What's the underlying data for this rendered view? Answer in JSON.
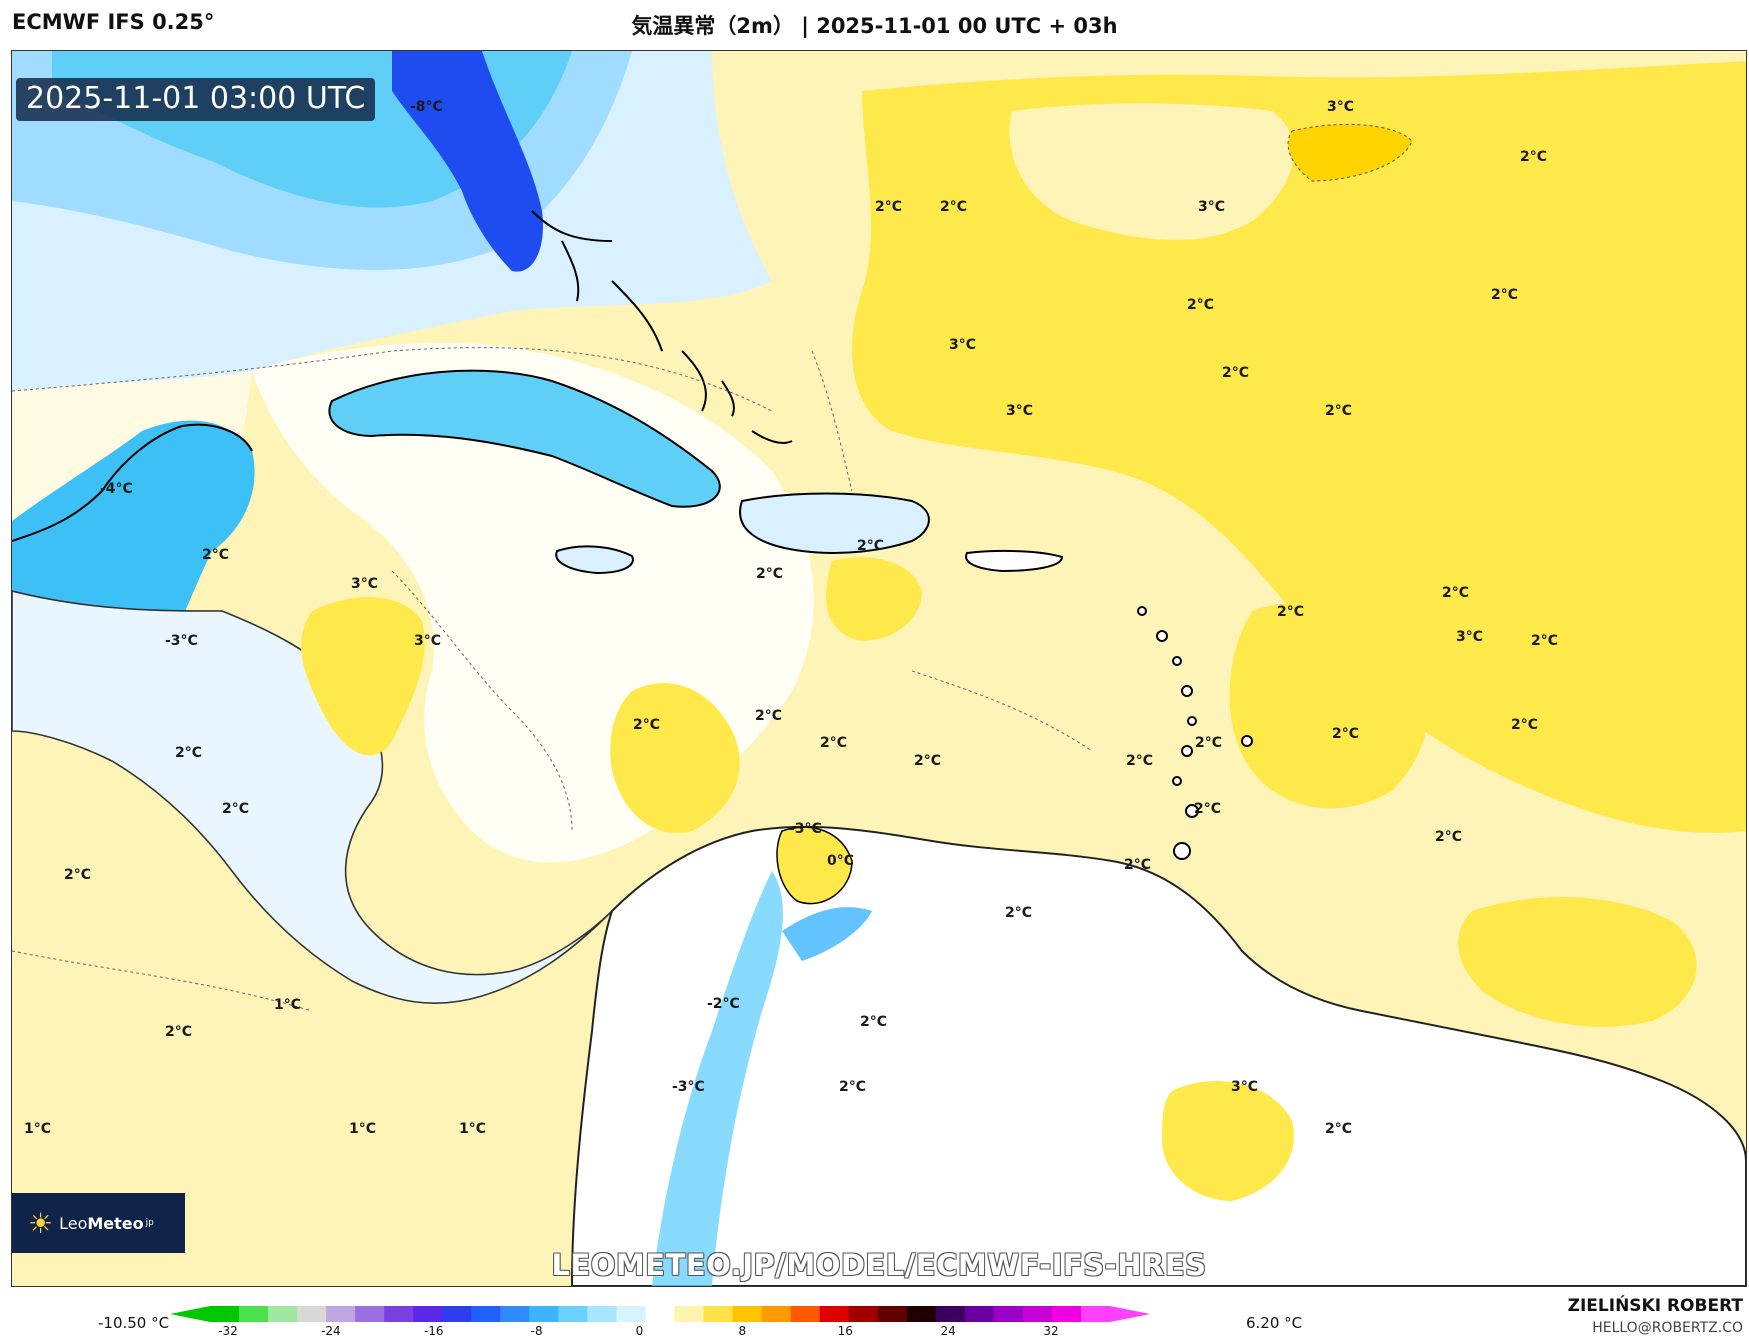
{
  "header": {
    "model": "ECMWF IFS 0.25°",
    "title": "気温異常（2m） | 2025-11-01 00 UTC + 03h"
  },
  "map": {
    "timestamp": "2025-11-01 03:00 UTC",
    "url": "LEOMETEO.JP/MODEL/ECMWF-IFS-HRES",
    "logo": {
      "prefix": "Leo",
      "bold": "Meteo",
      "suffix": "jp"
    },
    "colors": {
      "ocean_warm": "#fff4b8",
      "warm_2": "#ffe94a",
      "cool_1": "#d9f0ff",
      "cool_2": "#9fdcff",
      "cold_4": "#3cc0f5",
      "cold_8": "#1f4cf0",
      "coast": "#000000"
    },
    "labels": [
      {
        "text": "-8°C"
      },
      {
        "text": "3°C"
      },
      {
        "text": "2°C"
      },
      {
        "text": "2°C"
      },
      {
        "text": "2°C"
      },
      {
        "text": "3°C"
      },
      {
        "text": "2°C"
      },
      {
        "text": "2°C"
      },
      {
        "text": "3°C"
      },
      {
        "text": "2°C"
      },
      {
        "text": "3°C"
      },
      {
        "text": "2°C"
      },
      {
        "text": "-4°C"
      },
      {
        "text": "2°C"
      },
      {
        "text": "3°C"
      },
      {
        "text": "2°C"
      },
      {
        "text": "2°C"
      },
      {
        "text": "2°C"
      },
      {
        "text": "-3°C"
      },
      {
        "text": "3°C"
      },
      {
        "text": "2°C"
      },
      {
        "text": "2°C"
      },
      {
        "text": "3°C"
      },
      {
        "text": "2°C"
      },
      {
        "text": "2°C"
      },
      {
        "text": "2°C"
      },
      {
        "text": "2°C"
      },
      {
        "text": "2°C"
      },
      {
        "text": "2°C"
      },
      {
        "text": "2°C"
      },
      {
        "text": "2°C"
      },
      {
        "text": "2°C"
      },
      {
        "text": "2°C"
      },
      {
        "text": "2°C"
      },
      {
        "text": "-3°C"
      },
      {
        "text": "0°C"
      },
      {
        "text": "2°C"
      },
      {
        "text": "2°C"
      },
      {
        "text": "2°C"
      },
      {
        "text": "1°C"
      },
      {
        "text": "2°C"
      },
      {
        "text": "-2°C"
      },
      {
        "text": "2°C"
      },
      {
        "text": "-3°C"
      },
      {
        "text": "2°C"
      },
      {
        "text": "3°C"
      },
      {
        "text": "1°C"
      },
      {
        "text": "1°C"
      },
      {
        "text": "1°C"
      },
      {
        "text": "2°C"
      },
      {
        "text": "2°C"
      }
    ]
  },
  "legend": {
    "min_label": "-10.50 °C",
    "max_label": "6.20 °C",
    "ticks": [
      "-32",
      "-24",
      "-16",
      "-8",
      "0",
      "8",
      "16",
      "24",
      "32"
    ],
    "colors": [
      "#00c800",
      "#4de04d",
      "#a0e8a0",
      "#d8d8d8",
      "#bfa6e0",
      "#9b6fe0",
      "#7a3fe0",
      "#5a28e6",
      "#2f3cf0",
      "#2060ff",
      "#2f8cff",
      "#3cb4ff",
      "#6ad2ff",
      "#a8e6ff",
      "#d8f3ff",
      "#ffffff",
      "#fff3b0",
      "#ffe24a",
      "#ffc400",
      "#ff9b00",
      "#ff5a00",
      "#e00000",
      "#a00000",
      "#600000",
      "#200000",
      "#3a0060",
      "#6a00a0",
      "#9a00c8",
      "#c800d8",
      "#f000e0",
      "#ff40ff"
    ]
  },
  "credit": {
    "name": "ZIELIŃSKI ROBERT",
    "email": "HELLO@ROBERTZ.CO"
  }
}
